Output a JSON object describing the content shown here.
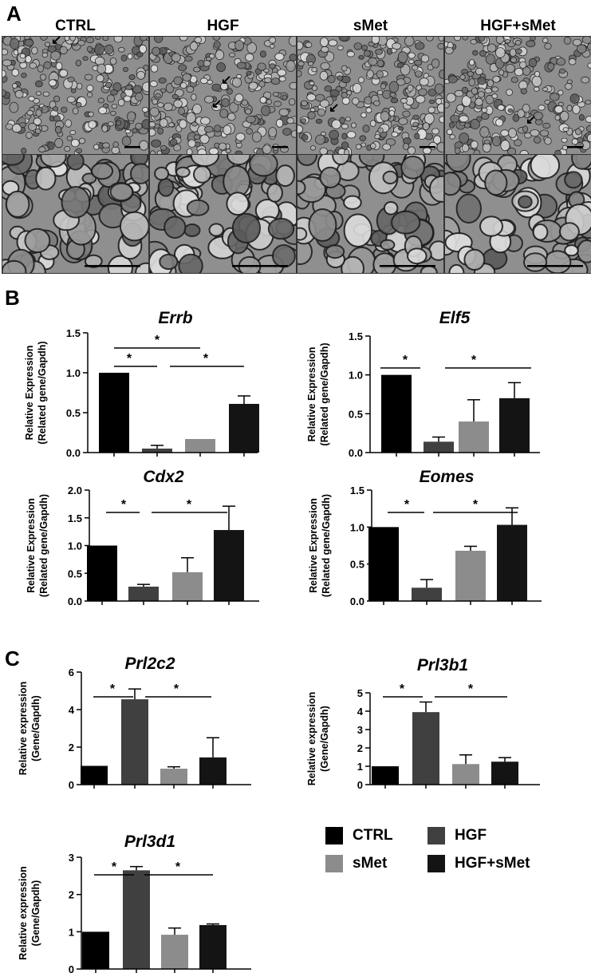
{
  "panels": {
    "A": "A",
    "B": "B",
    "C": "C"
  },
  "micrograph_columns": [
    "CTRL",
    "HGF",
    "sMet",
    "HGF+sMet"
  ],
  "colors": {
    "CTRL": "#000000",
    "HGF": "#404040",
    "sMet": "#8c8c8c",
    "HGF+sMet": "#141414"
  },
  "legend": [
    "CTRL",
    "HGF",
    "sMet",
    "HGF+sMet"
  ],
  "chart_data": [
    {
      "type": "bar",
      "title": "Errb",
      "panel": "B",
      "ylabel": [
        "Relative Expression",
        "(Related gene/Gapdh)"
      ],
      "categories": [
        "CTRL",
        "HGF",
        "sMet",
        "HGF+sMet"
      ],
      "values": [
        1.0,
        0.05,
        0.17,
        0.61
      ],
      "errors": [
        0,
        0.04,
        0,
        0.1
      ],
      "ylim": [
        0,
        1.5
      ],
      "yticks": [
        "0.0",
        "0.5",
        "1.0",
        "1.5"
      ],
      "significance": [
        [
          "*",
          "*",
          "*"
        ]
      ]
    },
    {
      "type": "bar",
      "title": "Elf5",
      "panel": "B",
      "ylabel": [
        "Relative Expression",
        "(Related gene/Gapdh)"
      ],
      "categories": [
        "CTRL",
        "HGF",
        "sMet",
        "HGF+sMet"
      ],
      "values": [
        1.0,
        0.14,
        0.4,
        0.7
      ],
      "errors": [
        0,
        0.06,
        0.28,
        0.2
      ],
      "ylim": [
        0,
        1.5
      ],
      "yticks": [
        "0.0",
        "0.5",
        "1.0",
        "1.5"
      ],
      "significance": [
        [
          "*",
          "*"
        ]
      ]
    },
    {
      "type": "bar",
      "title": "Cdx2",
      "panel": "B",
      "ylabel": [
        "Relative Expression",
        "(Related gene/Gapdh)"
      ],
      "categories": [
        "CTRL",
        "HGF",
        "sMet",
        "HGF+sMet"
      ],
      "values": [
        1.0,
        0.26,
        0.52,
        1.28
      ],
      "errors": [
        0,
        0.04,
        0.26,
        0.43
      ],
      "ylim": [
        0,
        2.0
      ],
      "yticks": [
        "0.0",
        "0.5",
        "1.0",
        "1.5",
        "2.0"
      ],
      "significance": [
        [
          "*",
          "*"
        ]
      ]
    },
    {
      "type": "bar",
      "title": "Eomes",
      "panel": "B",
      "ylabel": [
        "Relative Expression",
        "(Related gene/Gapdh)"
      ],
      "categories": [
        "CTRL",
        "HGF",
        "sMet",
        "HGF+sMet"
      ],
      "values": [
        1.0,
        0.18,
        0.68,
        1.03
      ],
      "errors": [
        0,
        0.11,
        0.06,
        0.23
      ],
      "ylim": [
        0,
        1.5
      ],
      "yticks": [
        "0.0",
        "0.5",
        "1.0",
        "1.5"
      ],
      "significance": [
        [
          "*",
          "*"
        ]
      ]
    },
    {
      "type": "bar",
      "title": "Prl2c2",
      "panel": "C",
      "ylabel": [
        "Relative expression",
        "(Gene/Gapdh)"
      ],
      "categories": [
        "CTRL",
        "HGF",
        "sMet",
        "HGF+sMet"
      ],
      "values": [
        1.0,
        4.55,
        0.85,
        1.45
      ],
      "errors": [
        0,
        0.55,
        0.1,
        1.05
      ],
      "ylim": [
        0,
        6
      ],
      "yticks": [
        "0",
        "2",
        "4",
        "6"
      ],
      "significance": [
        [
          "*",
          "*"
        ]
      ]
    },
    {
      "type": "bar",
      "title": "Prl3b1",
      "panel": "C",
      "ylabel": [
        "Relative expression",
        "(Gene/Gapdh)"
      ],
      "categories": [
        "CTRL",
        "HGF",
        "sMet",
        "HGF+sMet"
      ],
      "values": [
        1.0,
        3.95,
        1.12,
        1.25
      ],
      "errors": [
        0,
        0.55,
        0.5,
        0.22
      ],
      "ylim": [
        0,
        5
      ],
      "yticks": [
        "0",
        "1",
        "2",
        "3",
        "4",
        "5"
      ],
      "significance": [
        [
          "*",
          "*"
        ]
      ]
    },
    {
      "type": "bar",
      "title": "Prl3d1",
      "panel": "C",
      "ylabel": [
        "Relative expression",
        "(Gene/Gapdh)"
      ],
      "categories": [
        "CTRL",
        "HGF",
        "sMet",
        "HGF+sMet"
      ],
      "values": [
        1.0,
        2.65,
        0.92,
        1.18
      ],
      "errors": [
        0,
        0.1,
        0.18,
        0.03
      ],
      "ylim": [
        0,
        3
      ],
      "yticks": [
        "0",
        "1",
        "2",
        "3"
      ],
      "significance": [
        [
          "*",
          "*"
        ]
      ]
    }
  ]
}
